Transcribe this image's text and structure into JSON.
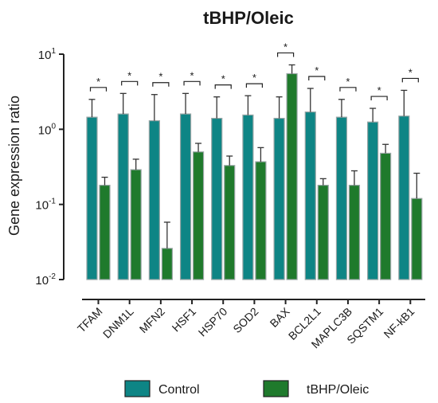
{
  "chart_data": {
    "type": "bar",
    "title": "tBHP/Oleic",
    "xlabel": "",
    "ylabel": "Gene expression ratio",
    "yscale": "log",
    "ylim": [
      0.01,
      10
    ],
    "yticks": [
      {
        "value": 10,
        "base": "10",
        "exp": "1"
      },
      {
        "value": 1,
        "base": "10",
        "exp": "0"
      },
      {
        "value": 0.1,
        "base": "10",
        "exp": "-1"
      },
      {
        "value": 0.01,
        "base": "10",
        "exp": "-2"
      }
    ],
    "categories": [
      "TFAM",
      "DNM1L",
      "MFN2",
      "HSF1",
      "HSP70",
      "SOD2",
      "BAX",
      "BCL2L1",
      "MAPLC3B",
      "SQSTM1",
      "NF-kB1"
    ],
    "series": [
      {
        "name": "Control",
        "color": "#0e8585",
        "values": [
          1.45,
          1.6,
          1.3,
          1.6,
          1.4,
          1.55,
          1.4,
          1.7,
          1.45,
          1.25,
          1.5
        ],
        "error_upper": [
          2.5,
          3.0,
          2.9,
          3.0,
          2.7,
          2.8,
          2.7,
          3.5,
          2.5,
          1.9,
          3.3
        ]
      },
      {
        "name": "tBHP/Oleic",
        "color": "#1f7a2c",
        "values": [
          0.18,
          0.29,
          0.026,
          0.5,
          0.33,
          0.37,
          5.5,
          0.18,
          0.18,
          0.48,
          0.12
        ],
        "error_upper": [
          0.23,
          0.4,
          0.058,
          0.65,
          0.44,
          0.57,
          7.2,
          0.22,
          0.28,
          0.63,
          0.26
        ]
      }
    ],
    "significance": [
      "*",
      "*",
      "*",
      "*",
      "*",
      "*",
      "*",
      "*",
      "*",
      "*",
      "*"
    ],
    "legend": {
      "position": "bottom",
      "labels": [
        "Control",
        "tBHP/Oleic"
      ]
    },
    "grid": false
  }
}
